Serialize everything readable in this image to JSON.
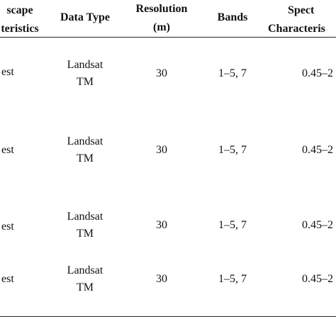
{
  "table": {
    "headers": [
      {
        "line1": "scape",
        "line2": "teristics"
      },
      {
        "line1": "Data Type",
        "line2": ""
      },
      {
        "line1": "Resolution",
        "line2": "(m)"
      },
      {
        "line1": "Bands",
        "line2": ""
      },
      {
        "line1": "Spect",
        "line2": "Characteris"
      }
    ],
    "rows": [
      {
        "landscape": "est",
        "data_type_1": "Landsat",
        "data_type_2": "TM",
        "resolution": "30",
        "bands": "1–5, 7",
        "spectral": "0.45–2"
      },
      {
        "landscape": "est",
        "data_type_1": "Landsat",
        "data_type_2": "TM",
        "resolution": "30",
        "bands": "1–5, 7",
        "spectral": "0.45–2"
      },
      {
        "landscape": "est",
        "data_type_1": "Landsat",
        "data_type_2": "TM",
        "resolution": "30",
        "bands": "1–5, 7",
        "spectral": "0.45–2"
      },
      {
        "landscape": "est",
        "data_type_1": "Landsat",
        "data_type_2": "TM",
        "resolution": "30",
        "bands": "1–5, 7",
        "spectral": "0.45–2"
      }
    ]
  }
}
